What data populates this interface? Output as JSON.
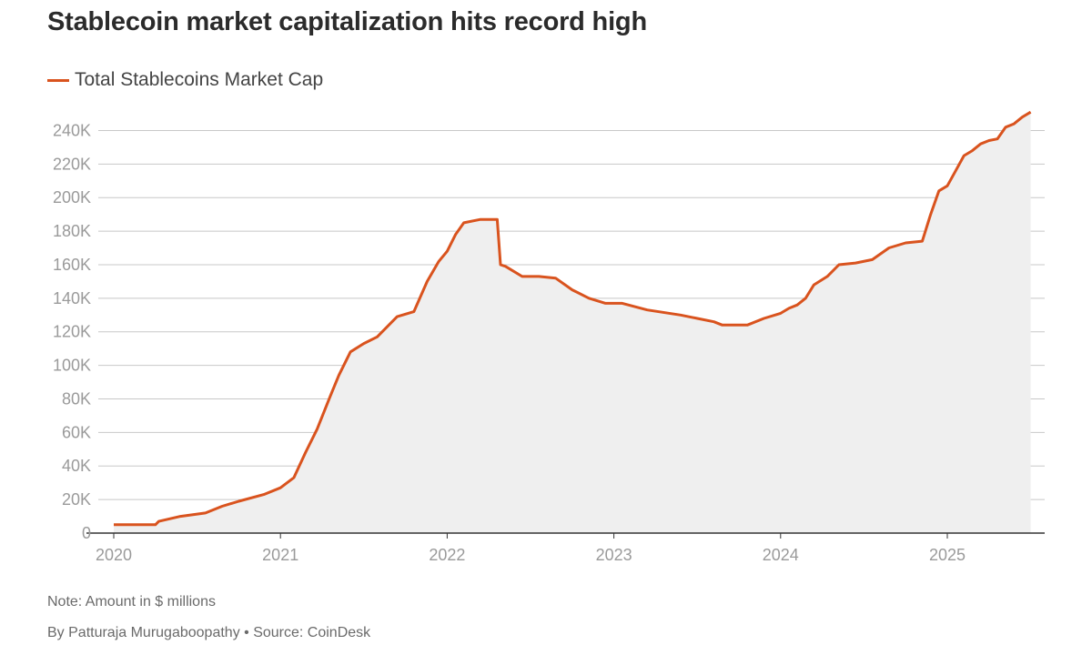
{
  "title": "Stablecoin market capitalization hits record high",
  "legend": {
    "label": "Total Stablecoins Market Cap",
    "color": "#d9531e"
  },
  "note": "Note: Amount in $ millions",
  "credit": {
    "author": "By Patturaja Murugaboopathy",
    "separator": "•",
    "source": "Source: CoinDesk"
  },
  "chart_data": {
    "type": "area",
    "title": "Stablecoin market capitalization hits record high",
    "xlabel": "",
    "ylabel": "",
    "xlim": [
      2020.0,
      2025.55
    ],
    "ylim": [
      0,
      250000
    ],
    "yticks": [
      0,
      20000,
      40000,
      60000,
      80000,
      100000,
      120000,
      140000,
      160000,
      180000,
      200000,
      220000,
      240000
    ],
    "yticklabels": [
      "0",
      "20K",
      "40K",
      "60K",
      "80K",
      "100K",
      "120K",
      "140K",
      "160K",
      "180K",
      "200K",
      "220K",
      "240K"
    ],
    "xticks": [
      2020,
      2021,
      2022,
      2023,
      2024,
      2025
    ],
    "xticklabels": [
      "2020",
      "2021",
      "2022",
      "2023",
      "2024",
      "2025"
    ],
    "grid": true,
    "line_color": "#d9531e",
    "fill_color": "#efefef",
    "series": [
      {
        "name": "Total Stablecoins Market Cap",
        "x": [
          2020.0,
          2020.25,
          2020.27,
          2020.4,
          2020.55,
          2020.65,
          2020.75,
          2020.9,
          2021.0,
          2021.08,
          2021.15,
          2021.22,
          2021.3,
          2021.35,
          2021.42,
          2021.5,
          2021.58,
          2021.65,
          2021.7,
          2021.8,
          2021.88,
          2021.95,
          2022.0,
          2022.05,
          2022.1,
          2022.2,
          2022.3,
          2022.32,
          2022.35,
          2022.45,
          2022.55,
          2022.65,
          2022.75,
          2022.85,
          2022.95,
          2023.05,
          2023.2,
          2023.4,
          2023.5,
          2023.6,
          2023.65,
          2023.75,
          2023.8,
          2023.9,
          2024.0,
          2024.05,
          2024.1,
          2024.15,
          2024.2,
          2024.28,
          2024.35,
          2024.45,
          2024.55,
          2024.65,
          2024.75,
          2024.85,
          2024.9,
          2024.95,
          2025.0,
          2025.05,
          2025.1,
          2025.15,
          2025.2,
          2025.25,
          2025.3,
          2025.35,
          2025.4,
          2025.45,
          2025.5
        ],
        "values": [
          5000,
          5000,
          7000,
          10000,
          12000,
          16000,
          19000,
          23000,
          27000,
          33000,
          48000,
          62000,
          82000,
          94000,
          108000,
          113000,
          117000,
          124000,
          129000,
          132000,
          150000,
          162000,
          168000,
          178000,
          185000,
          187000,
          187000,
          160000,
          159000,
          153000,
          153000,
          152000,
          145000,
          140000,
          137000,
          137000,
          133000,
          130000,
          128000,
          126000,
          124000,
          124000,
          124000,
          128000,
          131000,
          134000,
          136000,
          140000,
          148000,
          153000,
          160000,
          161000,
          163000,
          170000,
          173000,
          174000,
          190000,
          204000,
          207000,
          216000,
          225000,
          228000,
          232000,
          234000,
          235000,
          242000,
          244000,
          248000,
          251000
        ]
      }
    ]
  }
}
